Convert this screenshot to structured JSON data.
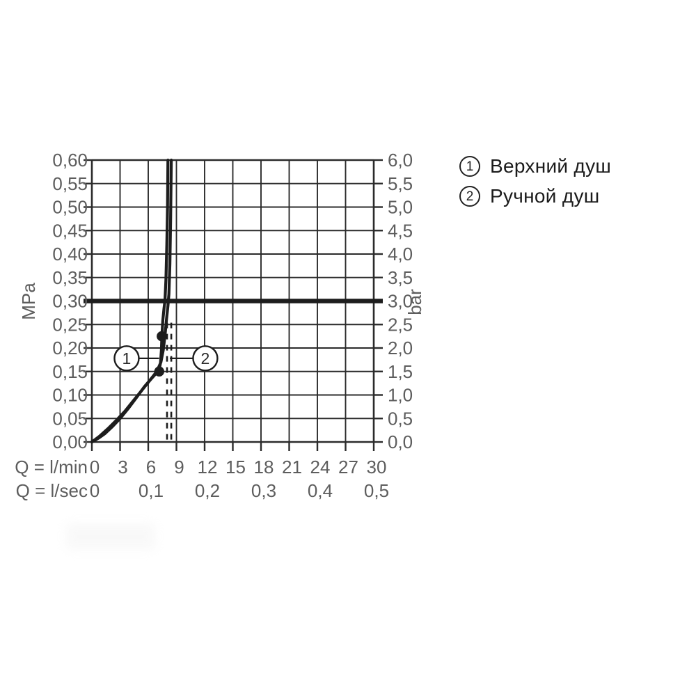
{
  "legend": {
    "items": [
      {
        "number": "1",
        "label": "Верхний душ"
      },
      {
        "number": "2",
        "label": "Ручной душ"
      }
    ]
  },
  "colors": {
    "grid": "#2b2b2b",
    "curve": "#1d1d1d",
    "bold_line": "#1d1d1d",
    "axis_text": "#5d5d5d",
    "legend_text": "#1b1b1b",
    "background": "#ffffff"
  },
  "chart_data": {
    "type": "line",
    "title": "",
    "grid": true,
    "legend_position": "top-right",
    "x_axis": {
      "primary_label": "Q = l/min",
      "primary_ticks": [
        "0",
        "3",
        "6",
        "9",
        "12",
        "15",
        "18",
        "21",
        "24",
        "27",
        "30"
      ],
      "secondary_label": "Q = l/sec",
      "secondary_ticks": [
        {
          "label": "0",
          "lmin": 0
        },
        {
          "label": "0,1",
          "lmin": 6
        },
        {
          "label": "0,2",
          "lmin": 12
        },
        {
          "label": "0,3",
          "lmin": 18
        },
        {
          "label": "0,4",
          "lmin": 24
        },
        {
          "label": "0,5",
          "lmin": 30
        }
      ],
      "range_lmin": [
        0,
        30
      ],
      "gridline_step_lmin": 3
    },
    "y_axis_left": {
      "unit": "MPa",
      "ticks_top_to_bottom": [
        "0,60",
        "0,55",
        "0,50",
        "0,45",
        "0,40",
        "0,35",
        "0,30",
        "0,25",
        "0,20",
        "0,15",
        "0,10",
        "0,05",
        "0,00"
      ],
      "range_mpa": [
        0,
        0.6
      ],
      "gridline_step_mpa": 0.05
    },
    "y_axis_right": {
      "unit": "bar",
      "ticks_top_to_bottom": [
        "6,0",
        "5,5",
        "5,0",
        "4,5",
        "4,0",
        "3,5",
        "3,0",
        "2,5",
        "2,0",
        "1,5",
        "1,0",
        "0,5",
        "0,0"
      ],
      "range_bar": [
        0,
        6
      ]
    },
    "bold_line_mpa": 0.3,
    "series": [
      {
        "name": "Верхний душ",
        "callout": "1",
        "points_lmin_mpa": [
          [
            0,
            0
          ],
          [
            0.7,
            0.008
          ],
          [
            1.4,
            0.018
          ],
          [
            2.2,
            0.033
          ],
          [
            3,
            0.05
          ],
          [
            3.9,
            0.072
          ],
          [
            4.8,
            0.096
          ],
          [
            5.6,
            0.118
          ],
          [
            6.3,
            0.134
          ],
          [
            6.8,
            0.145
          ],
          [
            7.15,
            0.153
          ],
          [
            7.3,
            0.168
          ],
          [
            7.4,
            0.195
          ],
          [
            7.45,
            0.225
          ],
          [
            7.55,
            0.258
          ],
          [
            7.68,
            0.285
          ],
          [
            7.78,
            0.3
          ],
          [
            7.88,
            0.345
          ],
          [
            7.98,
            0.42
          ],
          [
            8.05,
            0.5
          ],
          [
            8.1,
            0.6
          ]
        ]
      },
      {
        "name": "Ручной душ",
        "callout": "2",
        "points_lmin_mpa": [
          [
            0,
            0
          ],
          [
            0.8,
            0.012
          ],
          [
            1.7,
            0.028
          ],
          [
            2.6,
            0.046
          ],
          [
            3.5,
            0.065
          ],
          [
            4.5,
            0.09
          ],
          [
            5.4,
            0.112
          ],
          [
            6.2,
            0.132
          ],
          [
            6.9,
            0.15
          ],
          [
            7.35,
            0.17
          ],
          [
            7.6,
            0.196
          ],
          [
            7.8,
            0.23
          ],
          [
            7.95,
            0.262
          ],
          [
            8.1,
            0.29
          ],
          [
            8.2,
            0.315
          ],
          [
            8.3,
            0.38
          ],
          [
            8.38,
            0.47
          ],
          [
            8.43,
            0.56
          ],
          [
            8.45,
            0.6
          ]
        ]
      }
    ],
    "markers_lmin_mpa": [
      [
        7.17,
        0.15
      ],
      [
        7.43,
        0.225
      ]
    ],
    "dashed_guides": [
      {
        "lmin": 8.0,
        "mpa_from": 0.005,
        "mpa_to": 0.265
      },
      {
        "lmin": 8.45,
        "mpa_from": 0.005,
        "mpa_to": 0.265
      }
    ],
    "callouts": [
      {
        "label": "1",
        "center_lmin": 3.7,
        "center_mpa": 0.178,
        "leader_to_lmin": 7.15
      },
      {
        "label": "2",
        "center_lmin": 12.07,
        "center_mpa": 0.178,
        "leader_to_lmin": 8.3
      }
    ]
  }
}
